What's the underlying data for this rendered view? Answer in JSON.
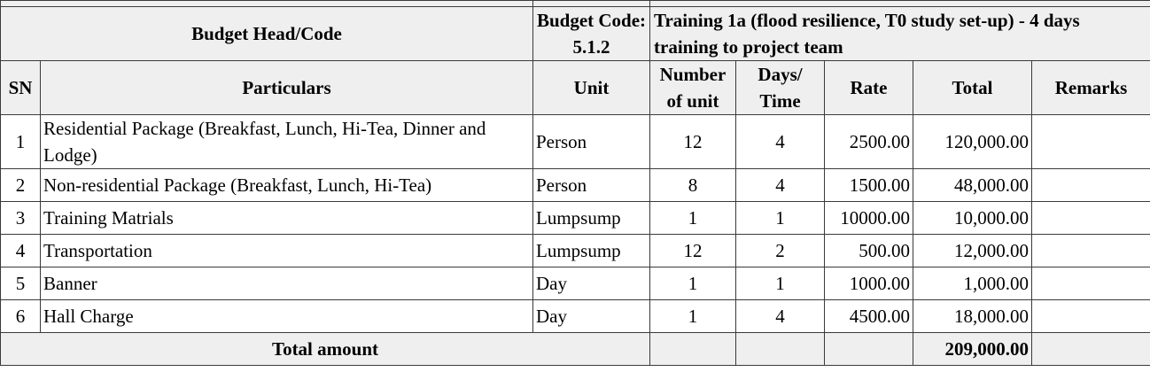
{
  "header": {
    "budget_head_label": "Budget Head/Code",
    "budget_code_label": "Budget Code: 5.1.2",
    "training_title": "Training 1a (flood resilience,  T0 study set-up) - 4 days training to project team"
  },
  "columns": {
    "sn": "SN",
    "particulars": "Particulars",
    "unit": "Unit",
    "number_of_unit": "Number of unit",
    "days_time": "Days/ Time",
    "rate": "Rate",
    "total": "Total",
    "remarks": "Remarks"
  },
  "rows": [
    {
      "sn": "1",
      "particulars": "Residential Package (Breakfast, Lunch, Hi-Tea, Dinner and Lodge)",
      "unit": "Person",
      "number": "12",
      "days": "4",
      "rate": "2500.00",
      "total": "120,000.00",
      "remarks": ""
    },
    {
      "sn": "2",
      "particulars": "Non-residential Package (Breakfast, Lunch, Hi-Tea)",
      "unit": "Person",
      "number": "8",
      "days": "4",
      "rate": "1500.00",
      "total": "48,000.00",
      "remarks": ""
    },
    {
      "sn": "3",
      "particulars": "Training Matrials",
      "unit": "Lumpsump",
      "number": "1",
      "days": "1",
      "rate": "10000.00",
      "total": "10,000.00",
      "remarks": ""
    },
    {
      "sn": "4",
      "particulars": "Transportation",
      "unit": "Lumpsump",
      "number": "12",
      "days": "2",
      "rate": "500.00",
      "total": "12,000.00",
      "remarks": ""
    },
    {
      "sn": "5",
      "particulars": "Banner",
      "unit": "Day",
      "number": "1",
      "days": "1",
      "rate": "1000.00",
      "total": "1,000.00",
      "remarks": ""
    },
    {
      "sn": "6",
      "particulars": "Hall Charge",
      "unit": "Day",
      "number": "1",
      "days": "4",
      "rate": "4500.00",
      "total": "18,000.00",
      "remarks": ""
    }
  ],
  "footer": {
    "total_label": "Total amount",
    "total_value": "209,000.00"
  }
}
